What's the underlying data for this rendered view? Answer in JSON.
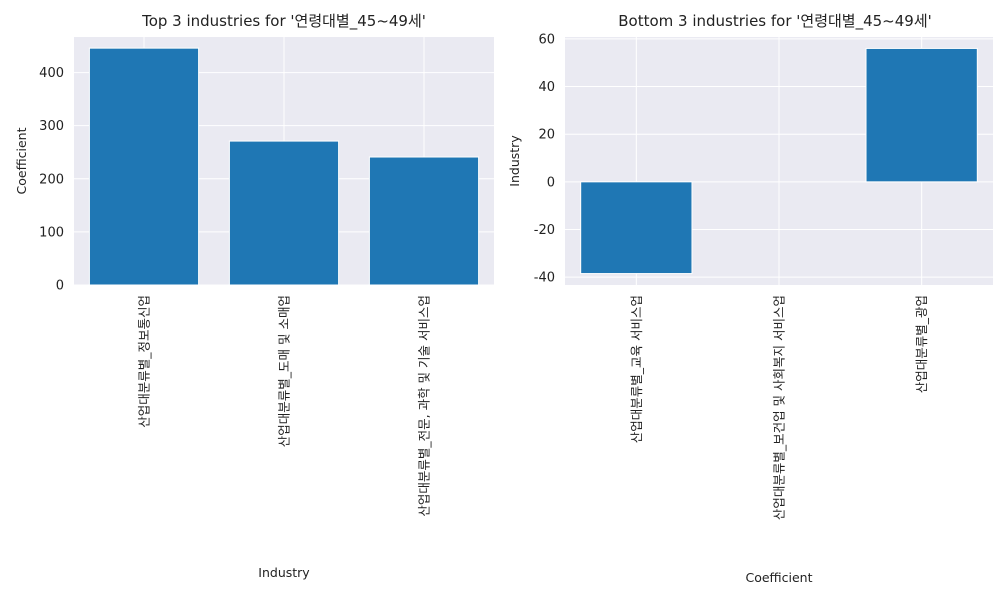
{
  "chart_data": [
    {
      "type": "bar",
      "title": "Top 3 industries for '연령대별_45~49세'",
      "xlabel": "Industry",
      "ylabel": "Coefficient",
      "categories": [
        "산업대분류별_정보통신업",
        "산업대분류별_도매 및 소매업",
        "산업대분류별_전문, 과학 및 기술 서비스업"
      ],
      "values": [
        446,
        271,
        241
      ],
      "ylim": [
        0,
        467
      ],
      "yticks": [
        0,
        100,
        200,
        300,
        400
      ],
      "grid": true,
      "bar_color": "#1f77b4"
    },
    {
      "type": "bar",
      "title": "Bottom 3 industries for '연령대별_45~49세'",
      "xlabel": "Coefficient",
      "ylabel": "Industry",
      "categories": [
        "산업대분류별_교육 서비스업",
        "산업대분류별_보건업 및 사회복지 서비스업",
        "산업대분류별_광업"
      ],
      "values": [
        -38.5,
        0,
        56
      ],
      "ylim": [
        -43.3,
        60.8
      ],
      "yticks": [
        -40,
        -20,
        0,
        20,
        40,
        60
      ],
      "grid": true,
      "bar_color": "#1f77b4"
    }
  ]
}
